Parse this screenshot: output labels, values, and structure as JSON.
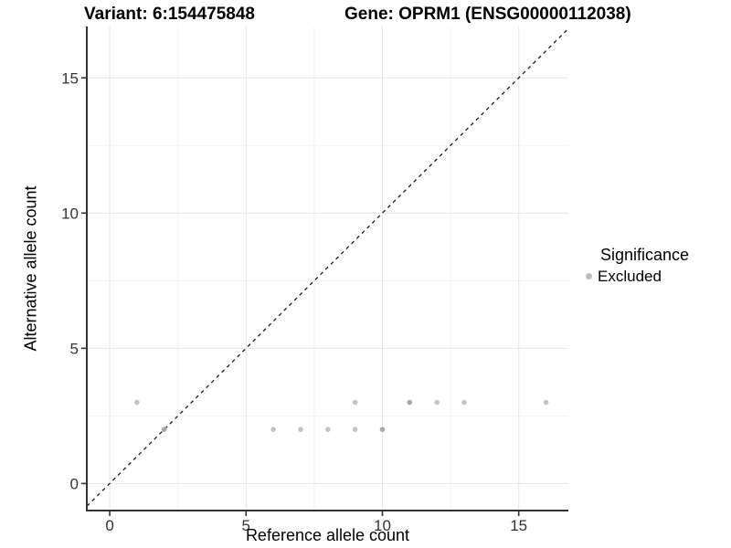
{
  "header": {
    "variant_title": "Variant: 6:154475848",
    "gene_title": "Gene: OPRM1 (ENSG00000112038)"
  },
  "chart_data": {
    "type": "scatter",
    "xlabel": "Reference allele count",
    "ylabel": "Alternative allele count",
    "xlim": [
      -0.84,
      16.82
    ],
    "ylim": [
      -1.0,
      16.9
    ],
    "x_ticks": [
      0,
      5,
      10,
      15
    ],
    "y_ticks": [
      0,
      5,
      10,
      15
    ],
    "x_minor_gridlines": [
      2.5,
      7.5,
      12.5
    ],
    "y_minor_gridlines": [
      2.5,
      7.5,
      12.5
    ],
    "grid": true,
    "legend_position": "right",
    "identity_line": {
      "style": "dashed",
      "slope": 1,
      "intercept": 0
    },
    "series": [
      {
        "name": "Excluded",
        "points": [
          {
            "x": 1,
            "y": 3,
            "shade": "light"
          },
          {
            "x": 9,
            "y": 3,
            "shade": "light"
          },
          {
            "x": 11,
            "y": 3,
            "shade": "dark"
          },
          {
            "x": 12,
            "y": 3,
            "shade": "light"
          },
          {
            "x": 13,
            "y": 3,
            "shade": "light"
          },
          {
            "x": 16,
            "y": 3,
            "shade": "light"
          },
          {
            "x": 2,
            "y": 2,
            "shade": "dark"
          },
          {
            "x": 6,
            "y": 2,
            "shade": "light"
          },
          {
            "x": 7,
            "y": 2,
            "shade": "light"
          },
          {
            "x": 8,
            "y": 2,
            "shade": "light"
          },
          {
            "x": 9,
            "y": 2,
            "shade": "light"
          },
          {
            "x": 10,
            "y": 2,
            "shade": "dark"
          }
        ]
      }
    ]
  },
  "legend": {
    "title": "Significance",
    "items": [
      {
        "label": "Excluded",
        "color": "#bdbdbd"
      }
    ]
  },
  "colors": {
    "point_light": "#c4c4c4",
    "point_dark": "#a8a8a8",
    "grid_major": "#e5e5e5",
    "grid_minor": "#f2f2f2",
    "axis_line": "#333333",
    "tick_label": "#333333",
    "identity_line": "#1a1a1a"
  }
}
